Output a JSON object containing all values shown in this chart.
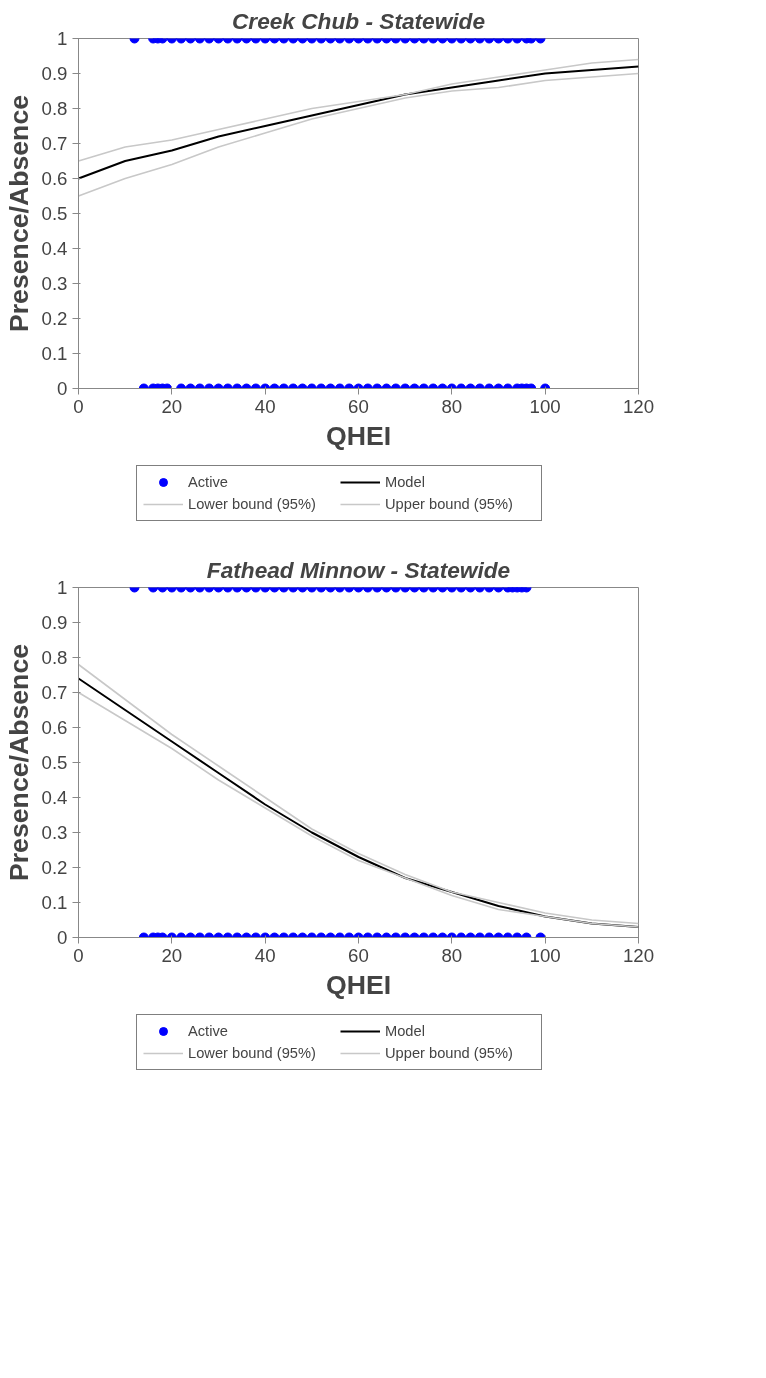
{
  "chart_data": [
    {
      "type": "line",
      "title": "Creek Chub - Statewide",
      "xlabel": "QHEI",
      "ylabel": "Presence/Absence",
      "xlim": [
        0,
        120
      ],
      "ylim": [
        0,
        1
      ],
      "xticks": [
        0,
        20,
        40,
        60,
        80,
        100,
        120
      ],
      "yticks": [
        0,
        0.1,
        0.2,
        0.3,
        0.4,
        0.5,
        0.6,
        0.7,
        0.8,
        0.9,
        1
      ],
      "grid": false,
      "legend": "bottom",
      "series": [
        {
          "name": "Active",
          "type": "scatter",
          "marker": "circle",
          "color": "#0000ff",
          "x": [
            12,
            16,
            17,
            18,
            20,
            22,
            24,
            26,
            28,
            30,
            32,
            34,
            36,
            38,
            40,
            42,
            44,
            46,
            48,
            50,
            52,
            54,
            56,
            58,
            60,
            62,
            64,
            66,
            68,
            70,
            72,
            74,
            76,
            78,
            80,
            82,
            84,
            86,
            88,
            90,
            92,
            94,
            96,
            97,
            99
          ],
          "values": [
            1,
            1,
            1,
            1,
            1,
            1,
            1,
            1,
            1,
            1,
            1,
            1,
            1,
            1,
            1,
            1,
            1,
            1,
            1,
            1,
            1,
            1,
            1,
            1,
            1,
            1,
            1,
            1,
            1,
            1,
            1,
            1,
            1,
            1,
            1,
            1,
            1,
            1,
            1,
            1,
            1,
            1,
            1,
            1,
            1
          ]
        },
        {
          "name": "Model",
          "color": "#000000",
          "x": [
            0,
            10,
            20,
            30,
            40,
            50,
            60,
            70,
            80,
            90,
            100,
            110,
            120
          ],
          "values": [
            0.6,
            0.65,
            0.68,
            0.72,
            0.75,
            0.78,
            0.81,
            0.84,
            0.86,
            0.88,
            0.9,
            0.91,
            0.92
          ]
        },
        {
          "name": "Lower bound (95%)",
          "color": "#c8c8c8",
          "x": [
            0,
            10,
            20,
            30,
            40,
            50,
            60,
            70,
            80,
            90,
            100,
            110,
            120
          ],
          "values": [
            0.55,
            0.6,
            0.64,
            0.69,
            0.73,
            0.77,
            0.8,
            0.83,
            0.85,
            0.86,
            0.88,
            0.89,
            0.9
          ]
        },
        {
          "name": "Upper bound (95%)",
          "color": "#c8c8c8",
          "x": [
            0,
            10,
            20,
            30,
            40,
            50,
            60,
            70,
            80,
            90,
            100,
            110,
            120
          ],
          "values": [
            0.65,
            0.69,
            0.71,
            0.74,
            0.77,
            0.8,
            0.82,
            0.84,
            0.87,
            0.89,
            0.91,
            0.93,
            0.94
          ]
        },
        {
          "type": "scatter",
          "marker": "circle",
          "color": "#0000ff",
          "x": [
            14,
            16,
            17,
            18,
            19,
            22,
            24,
            26,
            28,
            30,
            32,
            34,
            36,
            38,
            40,
            42,
            44,
            46,
            48,
            50,
            52,
            54,
            56,
            58,
            60,
            62,
            64,
            66,
            68,
            70,
            72,
            74,
            76,
            78,
            80,
            82,
            84,
            86,
            88,
            90,
            92,
            94,
            95,
            96,
            97,
            100
          ],
          "values": [
            0,
            0,
            0,
            0,
            0,
            0,
            0,
            0,
            0,
            0,
            0,
            0,
            0,
            0,
            0,
            0,
            0,
            0,
            0,
            0,
            0,
            0,
            0,
            0,
            0,
            0,
            0,
            0,
            0,
            0,
            0,
            0,
            0,
            0,
            0,
            0,
            0,
            0,
            0,
            0,
            0,
            0,
            0,
            0,
            0,
            0
          ]
        }
      ]
    },
    {
      "type": "line",
      "title": "Fathead Minnow - Statewide",
      "xlabel": "QHEI",
      "ylabel": "Presence/Absence",
      "xlim": [
        0,
        120
      ],
      "ylim": [
        0,
        1
      ],
      "xticks": [
        0,
        20,
        40,
        60,
        80,
        100,
        120
      ],
      "yticks": [
        0,
        0.1,
        0.2,
        0.3,
        0.4,
        0.5,
        0.6,
        0.7,
        0.8,
        0.9,
        1
      ],
      "grid": false,
      "legend": "bottom",
      "series": [
        {
          "name": "Active",
          "type": "scatter",
          "marker": "circle",
          "color": "#0000ff",
          "x": [
            12,
            16,
            18,
            20,
            22,
            24,
            26,
            28,
            30,
            32,
            34,
            36,
            38,
            40,
            42,
            44,
            46,
            48,
            50,
            52,
            54,
            56,
            58,
            60,
            62,
            64,
            66,
            68,
            70,
            72,
            74,
            76,
            78,
            80,
            82,
            84,
            86,
            88,
            90,
            92,
            93,
            94,
            95,
            96
          ],
          "values": [
            1,
            1,
            1,
            1,
            1,
            1,
            1,
            1,
            1,
            1,
            1,
            1,
            1,
            1,
            1,
            1,
            1,
            1,
            1,
            1,
            1,
            1,
            1,
            1,
            1,
            1,
            1,
            1,
            1,
            1,
            1,
            1,
            1,
            1,
            1,
            1,
            1,
            1,
            1,
            1,
            1,
            1,
            1,
            1
          ]
        },
        {
          "name": "Model",
          "color": "#000000",
          "x": [
            0,
            10,
            20,
            30,
            40,
            50,
            60,
            70,
            80,
            90,
            100,
            110,
            120
          ],
          "values": [
            0.74,
            0.65,
            0.56,
            0.47,
            0.38,
            0.3,
            0.23,
            0.17,
            0.13,
            0.09,
            0.06,
            0.04,
            0.03
          ]
        },
        {
          "name": "Lower bound (95%)",
          "color": "#c8c8c8",
          "x": [
            0,
            10,
            20,
            30,
            40,
            50,
            60,
            70,
            80,
            90,
            100,
            110,
            120
          ],
          "values": [
            0.7,
            0.62,
            0.54,
            0.45,
            0.37,
            0.29,
            0.22,
            0.17,
            0.12,
            0.08,
            0.06,
            0.04,
            0.03
          ]
        },
        {
          "name": "Upper bound (95%)",
          "color": "#c8c8c8",
          "x": [
            0,
            10,
            20,
            30,
            40,
            50,
            60,
            70,
            80,
            90,
            100,
            110,
            120
          ],
          "values": [
            0.78,
            0.68,
            0.58,
            0.49,
            0.4,
            0.31,
            0.24,
            0.18,
            0.13,
            0.1,
            0.07,
            0.05,
            0.04
          ]
        },
        {
          "type": "scatter",
          "marker": "circle",
          "color": "#0000ff",
          "x": [
            14,
            16,
            17,
            18,
            20,
            22,
            24,
            26,
            28,
            30,
            32,
            34,
            36,
            38,
            40,
            42,
            44,
            46,
            48,
            50,
            52,
            54,
            56,
            58,
            60,
            62,
            64,
            66,
            68,
            70,
            72,
            74,
            76,
            78,
            80,
            82,
            84,
            86,
            88,
            90,
            92,
            94,
            96,
            99
          ],
          "values": [
            0,
            0,
            0,
            0,
            0,
            0,
            0,
            0,
            0,
            0,
            0,
            0,
            0,
            0,
            0,
            0,
            0,
            0,
            0,
            0,
            0,
            0,
            0,
            0,
            0,
            0,
            0,
            0,
            0,
            0,
            0,
            0,
            0,
            0,
            0,
            0,
            0,
            0,
            0,
            0,
            0,
            0,
            0,
            0
          ]
        }
      ]
    }
  ]
}
